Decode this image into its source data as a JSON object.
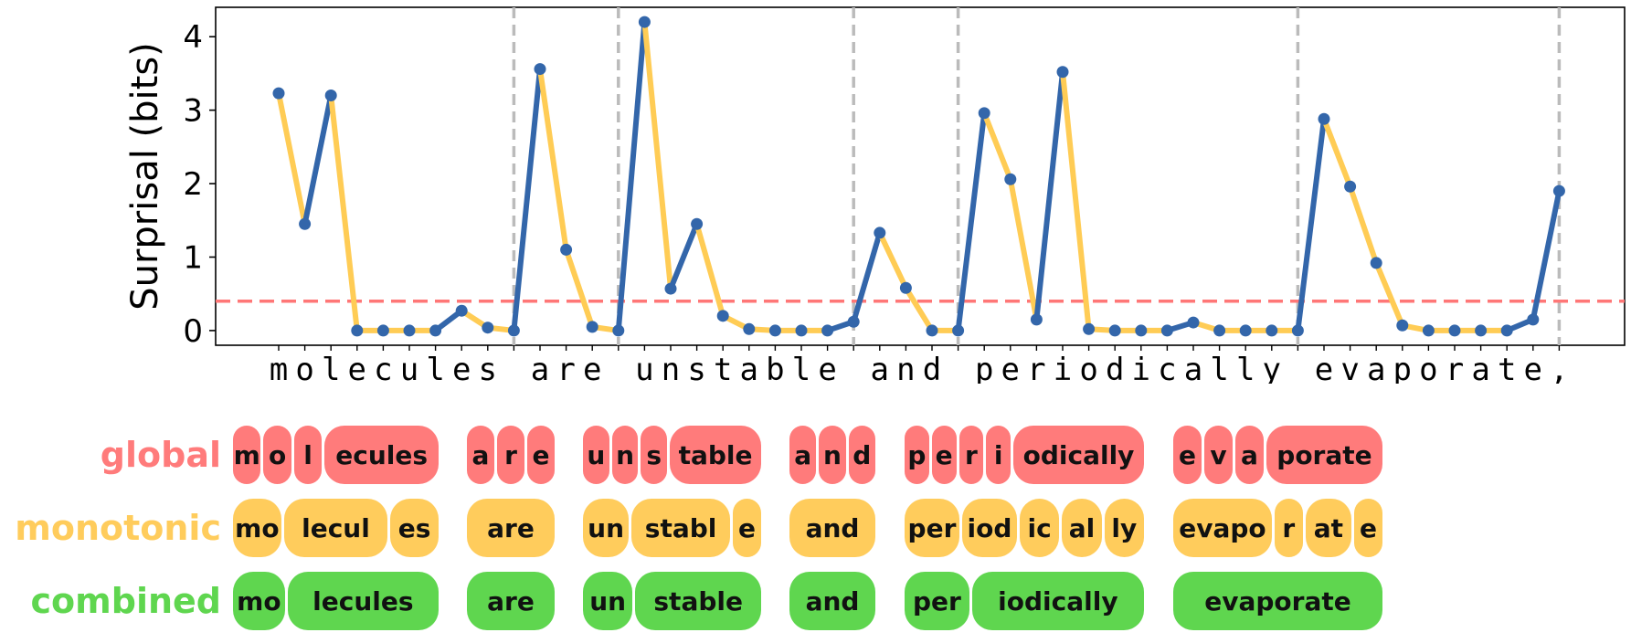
{
  "chart_data": {
    "type": "line",
    "ylabel": "Surprisal (bits)",
    "ylim": [
      -0.2,
      4.4
    ],
    "yticks": [
      0,
      1,
      2,
      3,
      4
    ],
    "threshold": 0.4,
    "characters": [
      "m",
      "o",
      "l",
      "e",
      "c",
      "u",
      "l",
      "e",
      "s",
      "_",
      "a",
      "r",
      "e",
      "_",
      "u",
      "n",
      "s",
      "t",
      "a",
      "b",
      "l",
      "e",
      "_",
      "a",
      "n",
      "d",
      "_",
      "p",
      "e",
      "r",
      "i",
      "o",
      "d",
      "i",
      "c",
      "a",
      "l",
      "l",
      "y",
      "_",
      "e",
      "v",
      "a",
      "p",
      "o",
      "r",
      "a",
      "t",
      "e",
      ","
    ],
    "values": [
      3.23,
      1.45,
      3.2,
      0.0,
      0.0,
      0.0,
      0.0,
      0.27,
      0.04,
      0.0,
      3.56,
      1.1,
      0.05,
      0.0,
      4.2,
      0.57,
      1.45,
      0.2,
      0.02,
      0.0,
      0.0,
      0.0,
      0.12,
      1.33,
      0.58,
      0.0,
      0.0,
      2.96,
      2.06,
      0.15,
      3.52,
      0.02,
      0.0,
      0.0,
      0.0,
      0.11,
      0.0,
      0.0,
      0.0,
      0.0,
      2.88,
      1.96,
      0.92,
      0.07,
      0.0,
      0.0,
      0.0,
      0.0,
      0.15,
      1.9
    ],
    "word_boundaries": [
      9,
      13,
      22,
      26,
      39,
      49
    ],
    "series": [
      {
        "color": "#3366aa"
      },
      {
        "color": "#ffcc55"
      }
    ],
    "threshold_color": "#ff7777",
    "boundary_color": "#bbbbbb"
  },
  "segmentations": {
    "rows": [
      {
        "label": "global",
        "color": "#ff7b7b",
        "text_color": "#ff7b7b",
        "words": [
          [
            "m",
            "o",
            "l",
            "ecules"
          ],
          [
            "a",
            "r",
            "e"
          ],
          [
            "u",
            "n",
            "s",
            "table"
          ],
          [
            "a",
            "n",
            "d"
          ],
          [
            "p",
            "e",
            "r",
            "i",
            "odically"
          ],
          [
            "e",
            "v",
            "a",
            "porate"
          ]
        ]
      },
      {
        "label": "monotonic",
        "color": "#ffcc5c",
        "text_color": "#ffcc5c",
        "words": [
          [
            "mo",
            "lecul",
            "es"
          ],
          [
            "are"
          ],
          [
            "un",
            "stabl",
            "e"
          ],
          [
            "and"
          ],
          [
            "per",
            "iod",
            "ic",
            "al",
            "ly"
          ],
          [
            "evapo",
            "r",
            "at",
            "e"
          ]
        ]
      },
      {
        "label": "combined",
        "color": "#5fd64f",
        "text_color": "#5fd64f",
        "words": [
          [
            "mo",
            "lecules"
          ],
          [
            "are"
          ],
          [
            "un",
            "stable"
          ],
          [
            "and"
          ],
          [
            "per",
            "iodically"
          ],
          [
            "evaporate"
          ]
        ]
      }
    ]
  }
}
